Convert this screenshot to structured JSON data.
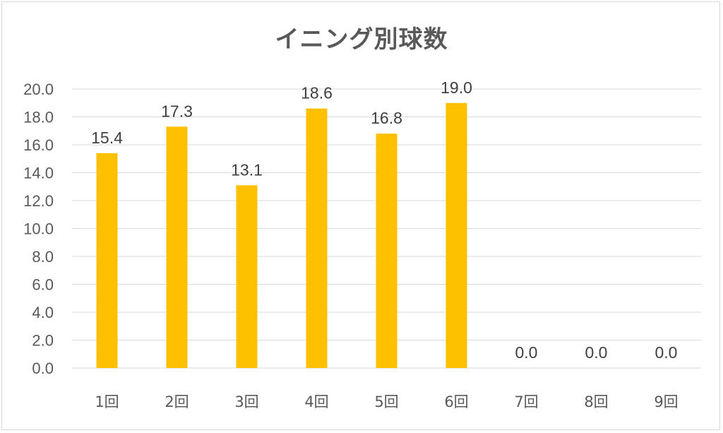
{
  "chart_data": {
    "type": "bar",
    "title": "イニング別球数",
    "xlabel": "",
    "ylabel": "",
    "categories": [
      "1回",
      "2回",
      "3回",
      "4回",
      "5回",
      "6回",
      "7回",
      "8回",
      "9回"
    ],
    "values": [
      15.4,
      17.3,
      13.1,
      18.6,
      16.8,
      19.0,
      0.0,
      0.0,
      0.0
    ],
    "data_labels": [
      "15.4",
      "17.3",
      "13.1",
      "18.6",
      "16.8",
      "19.0",
      "0.0",
      "0.0",
      "0.0"
    ],
    "ylim": [
      0,
      20
    ],
    "yticks": [
      "0.0",
      "2.0",
      "4.0",
      "6.0",
      "8.0",
      "10.0",
      "12.0",
      "14.0",
      "16.0",
      "18.0",
      "20.0"
    ],
    "grid": true,
    "legend": "none",
    "colors": {
      "bar": "#FFC000",
      "grid": "#d9d9d9",
      "text": "#595959",
      "label": "#404040"
    }
  }
}
